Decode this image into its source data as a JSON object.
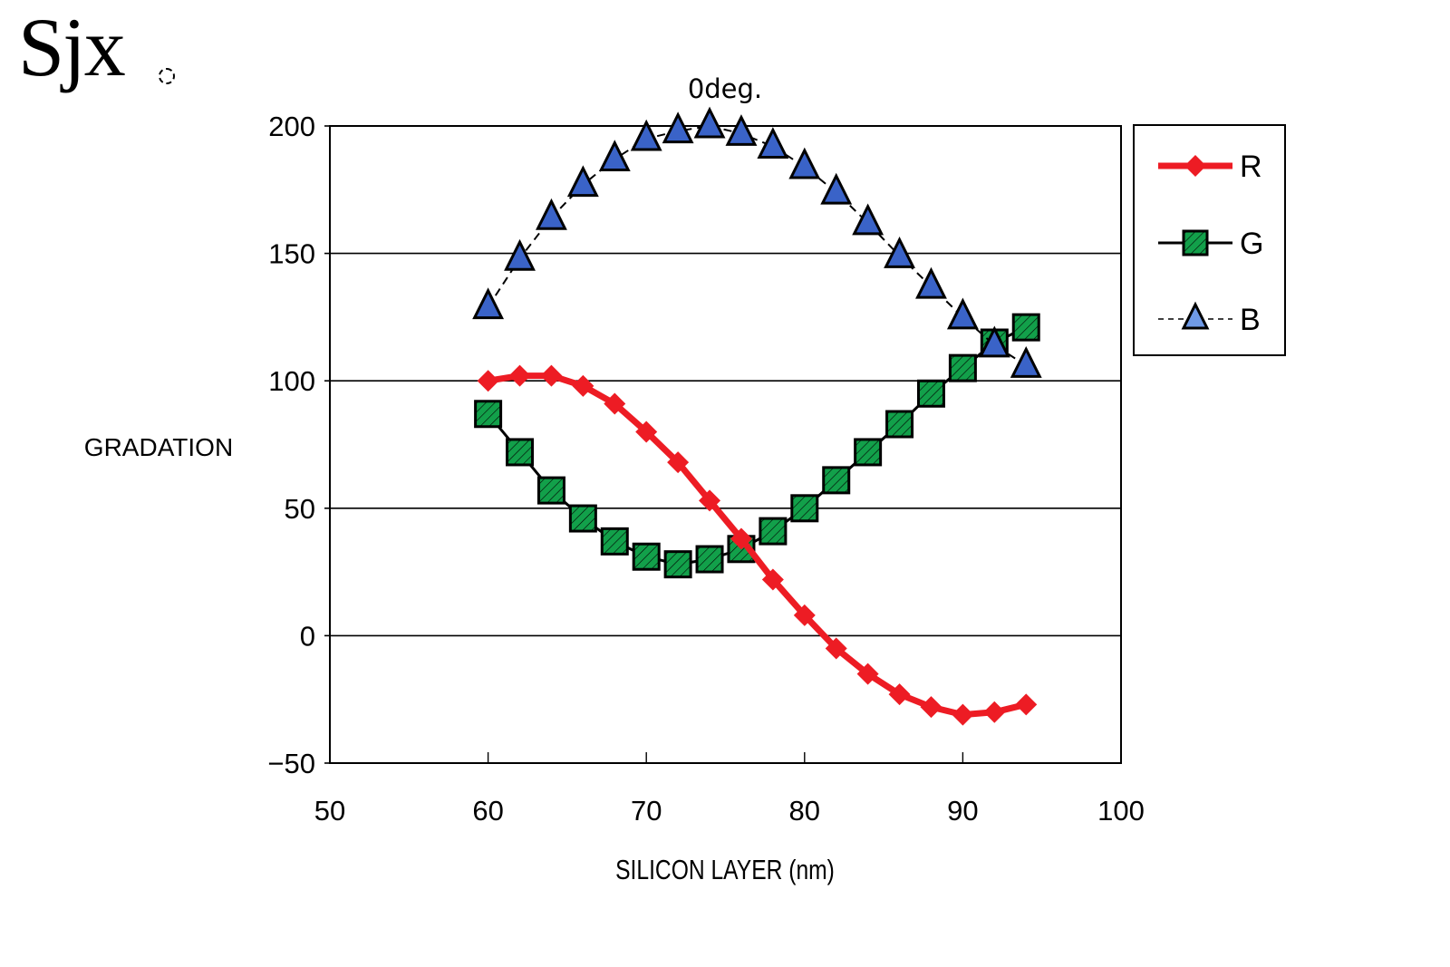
{
  "figure": {
    "label": "Sjx",
    "marker_icon": "dashed-circle-icon"
  },
  "chart_data": {
    "type": "line",
    "title": "0deg.",
    "xlabel": "SILICON LAYER (nm)",
    "ylabel": "GRADATION",
    "xlim": [
      50,
      100
    ],
    "ylim": [
      -50,
      200
    ],
    "xticks": [
      50,
      60,
      70,
      80,
      90,
      100
    ],
    "yticks": [
      200,
      150,
      100,
      50,
      0,
      -50
    ],
    "ytick_labels": [
      "200",
      "150",
      "100",
      "50",
      "0",
      "−50"
    ],
    "grid": "horizontal",
    "legend_position": "right",
    "x": [
      60,
      62,
      64,
      66,
      68,
      70,
      72,
      74,
      76,
      78,
      80,
      82,
      84,
      86,
      88,
      90,
      92,
      94
    ],
    "series": [
      {
        "name": "R",
        "color": "#ed1c24",
        "marker": "diamond",
        "line": "solid-thick",
        "values": [
          100,
          102,
          102,
          98,
          91,
          80,
          68,
          53,
          38,
          22,
          8,
          -5,
          -15,
          -23,
          -28,
          -31,
          -30,
          -27
        ]
      },
      {
        "name": "G",
        "color": "#12a04a",
        "marker": "square-hatched",
        "line": "solid",
        "values": [
          87,
          72,
          57,
          46,
          37,
          31,
          28,
          30,
          34,
          41,
          50,
          61,
          72,
          83,
          95,
          105,
          115,
          121
        ]
      },
      {
        "name": "B",
        "color": "#3a63c8",
        "marker": "triangle",
        "line": "dashed",
        "values": [
          129,
          148,
          164,
          177,
          187,
          195,
          198,
          200,
          197,
          192,
          184,
          174,
          162,
          149,
          137,
          125,
          114,
          106
        ]
      }
    ]
  }
}
